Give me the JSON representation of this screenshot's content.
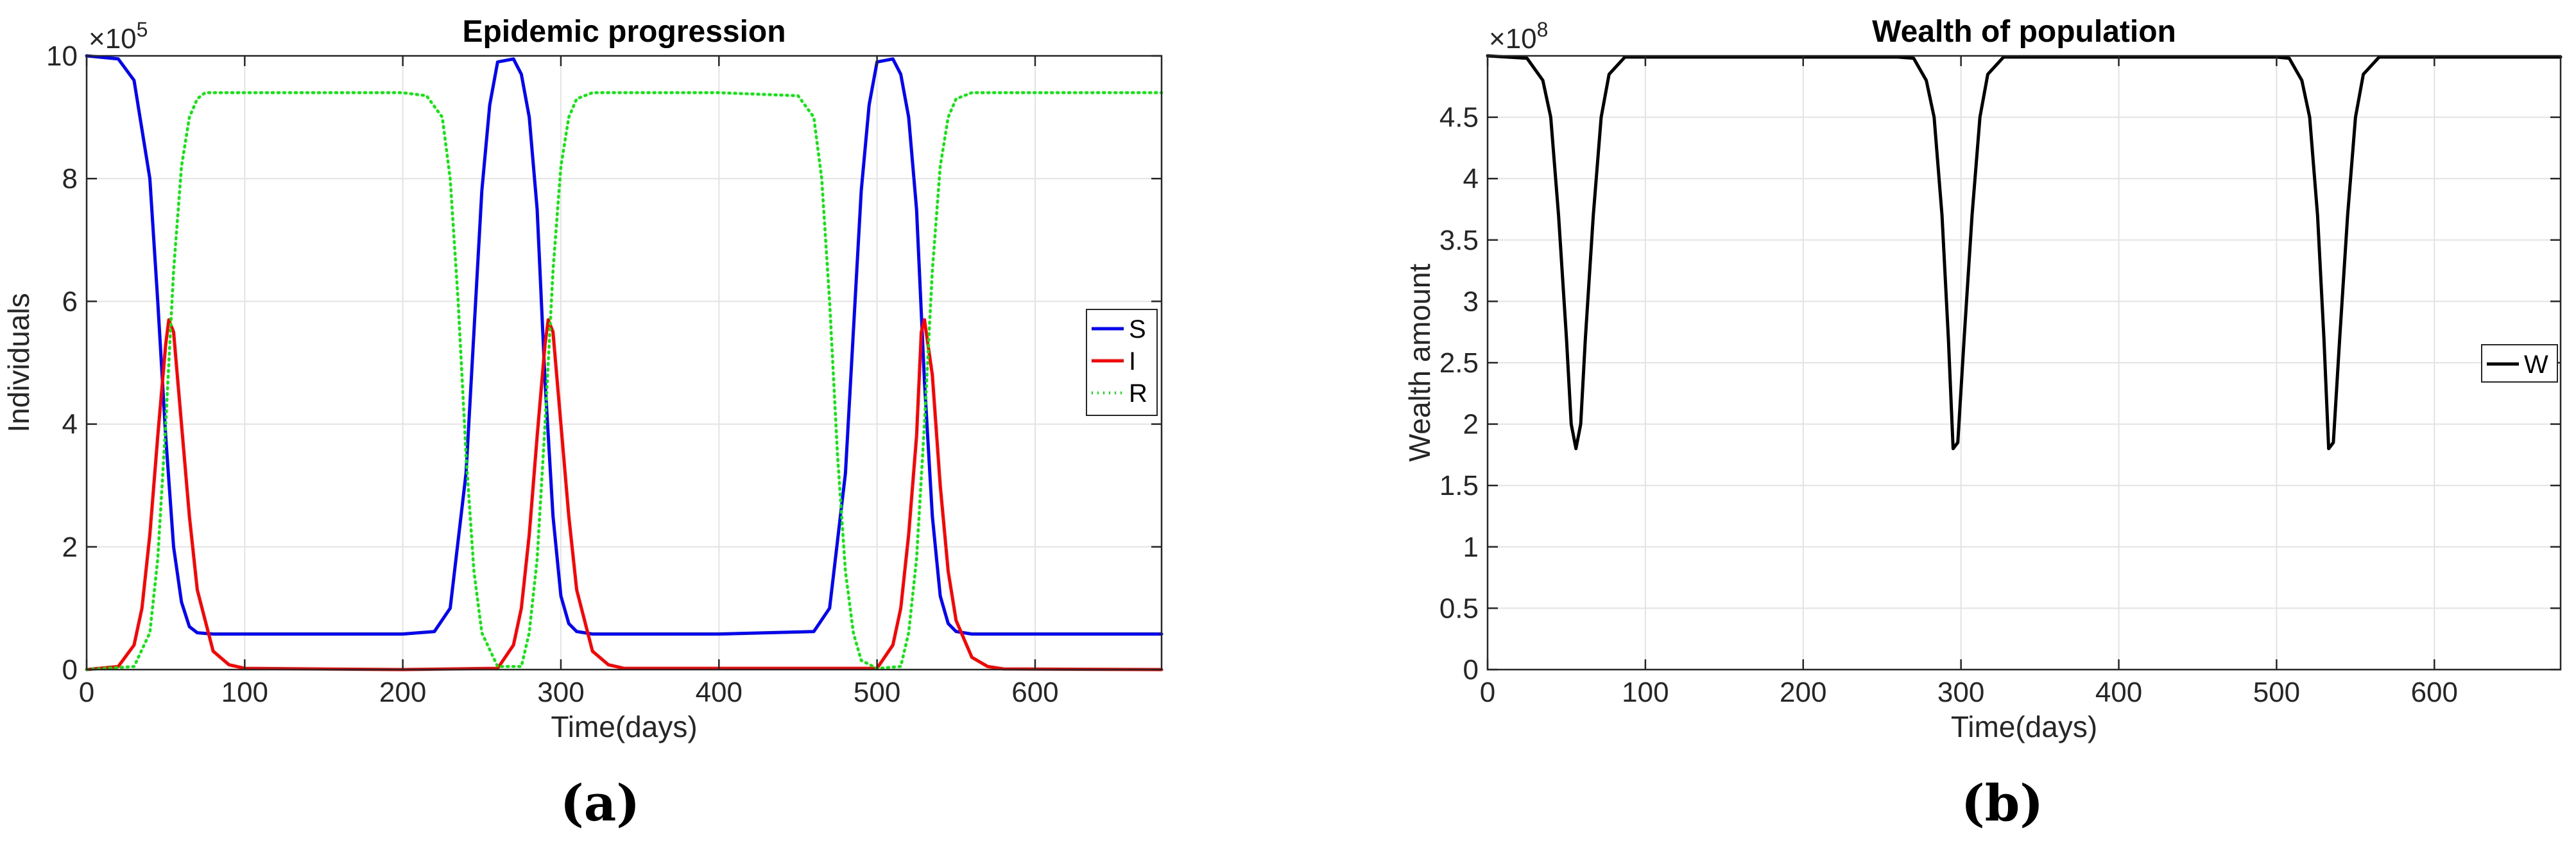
{
  "chart_data": [
    {
      "type": "line",
      "title": "Epidemic progression",
      "xlabel": "Time(days)",
      "ylabel": "Individuals",
      "y_exponent_base": "×10",
      "y_exponent_power": "5",
      "xlim": [
        0,
        680
      ],
      "ylim": [
        0,
        10
      ],
      "xticks": [
        0,
        100,
        200,
        300,
        400,
        500,
        600
      ],
      "yticks": [
        0,
        2,
        4,
        6,
        8,
        10
      ],
      "grid": true,
      "legend_position": "right-middle",
      "caption": "(a)",
      "series": [
        {
          "name": "S",
          "color": "#0000ff",
          "style": "solid",
          "x": [
            0,
            20,
            30,
            40,
            45,
            50,
            55,
            60,
            65,
            70,
            80,
            100,
            200,
            220,
            230,
            240,
            245,
            250,
            255,
            260,
            270,
            275,
            280,
            285,
            290,
            295,
            300,
            305,
            310,
            320,
            400,
            460,
            470,
            480,
            485,
            490,
            495,
            500,
            510,
            515,
            520,
            525,
            530,
            535,
            540,
            545,
            550,
            560,
            600,
            680
          ],
          "values": [
            10,
            9.95,
            9.6,
            8.0,
            6.0,
            3.8,
            2.0,
            1.1,
            0.7,
            0.6,
            0.58,
            0.58,
            0.58,
            0.62,
            1.0,
            3.2,
            5.5,
            7.8,
            9.2,
            9.9,
            9.95,
            9.7,
            9.0,
            7.5,
            4.7,
            2.5,
            1.2,
            0.75,
            0.62,
            0.58,
            0.58,
            0.62,
            1.0,
            3.2,
            5.5,
            7.8,
            9.2,
            9.9,
            9.95,
            9.7,
            9.0,
            7.5,
            4.7,
            2.5,
            1.2,
            0.75,
            0.62,
            0.58,
            0.58,
            0.58
          ]
        },
        {
          "name": "I",
          "color": "#ff0000",
          "style": "solid",
          "x": [
            0,
            20,
            30,
            35,
            40,
            45,
            50,
            52,
            55,
            60,
            65,
            70,
            80,
            90,
            100,
            200,
            260,
            270,
            275,
            280,
            285,
            290,
            292,
            295,
            300,
            305,
            310,
            320,
            330,
            340,
            500,
            510,
            515,
            520,
            525,
            528,
            530,
            535,
            540,
            545,
            550,
            560,
            570,
            580,
            680
          ],
          "values": [
            0,
            0.05,
            0.4,
            1.0,
            2.2,
            3.8,
            5.3,
            5.7,
            5.5,
            4.0,
            2.5,
            1.3,
            0.3,
            0.08,
            0.02,
            0,
            0.02,
            0.4,
            1.0,
            2.2,
            3.8,
            5.3,
            5.7,
            5.5,
            4.0,
            2.5,
            1.3,
            0.3,
            0.08,
            0.02,
            0.02,
            0.4,
            1.0,
            2.2,
            3.8,
            5.5,
            5.7,
            4.8,
            3.0,
            1.6,
            0.8,
            0.2,
            0.05,
            0.01,
            0
          ]
        },
        {
          "name": "R",
          "color": "#00ee00",
          "style": "dotted",
          "x": [
            0,
            30,
            40,
            45,
            50,
            55,
            60,
            65,
            70,
            75,
            80,
            100,
            200,
            215,
            225,
            230,
            235,
            240,
            245,
            250,
            260,
            275,
            280,
            285,
            290,
            295,
            300,
            305,
            310,
            320,
            400,
            450,
            460,
            465,
            470,
            475,
            480,
            485,
            490,
            500,
            515,
            520,
            525,
            530,
            535,
            540,
            545,
            550,
            560,
            600,
            680
          ],
          "values": [
            0,
            0.05,
            0.6,
            1.8,
            4.0,
            6.5,
            8.2,
            9.0,
            9.3,
            9.4,
            9.4,
            9.4,
            9.4,
            9.35,
            9.0,
            8.0,
            6.0,
            3.5,
            1.6,
            0.6,
            0.05,
            0.05,
            0.6,
            1.8,
            4.0,
            6.5,
            8.2,
            9.0,
            9.3,
            9.4,
            9.4,
            9.35,
            9.0,
            8.0,
            6.0,
            3.5,
            1.6,
            0.6,
            0.15,
            0.02,
            0.05,
            0.6,
            1.8,
            4.0,
            6.5,
            8.2,
            9.0,
            9.3,
            9.4,
            9.4,
            9.4
          ]
        }
      ]
    },
    {
      "type": "line",
      "title": "Wealth of population",
      "xlabel": "Time(days)",
      "ylabel": "Wealth amount",
      "y_exponent_base": "×10",
      "y_exponent_power": "8",
      "xlim": [
        0,
        680
      ],
      "ylim": [
        0,
        5
      ],
      "xticks": [
        0,
        100,
        200,
        300,
        400,
        500,
        600
      ],
      "yticks": [
        0,
        0.5,
        1,
        1.5,
        2,
        2.5,
        3,
        3.5,
        4,
        4.5
      ],
      "grid": true,
      "legend_position": "right-middle",
      "caption": "(b)",
      "series": [
        {
          "name": "W",
          "color": "#000000",
          "style": "solid",
          "x": [
            0,
            25,
            35,
            40,
            45,
            50,
            53,
            56,
            59,
            62,
            67,
            72,
            77,
            87,
            260,
            270,
            278,
            283,
            288,
            292,
            295,
            298,
            302,
            307,
            312,
            317,
            327,
            500,
            508,
            516,
            521,
            526,
            530,
            533,
            536,
            540,
            545,
            550,
            555,
            565,
            680
          ],
          "values": [
            5.0,
            4.98,
            4.8,
            4.5,
            3.7,
            2.7,
            2.0,
            1.8,
            2.0,
            2.7,
            3.7,
            4.5,
            4.85,
            4.99,
            4.99,
            4.98,
            4.8,
            4.5,
            3.7,
            2.7,
            1.8,
            1.85,
            2.7,
            3.7,
            4.5,
            4.85,
            4.99,
            4.99,
            4.98,
            4.8,
            4.5,
            3.7,
            2.7,
            1.8,
            1.85,
            2.7,
            3.7,
            4.5,
            4.85,
            4.99,
            4.99
          ]
        }
      ]
    }
  ]
}
